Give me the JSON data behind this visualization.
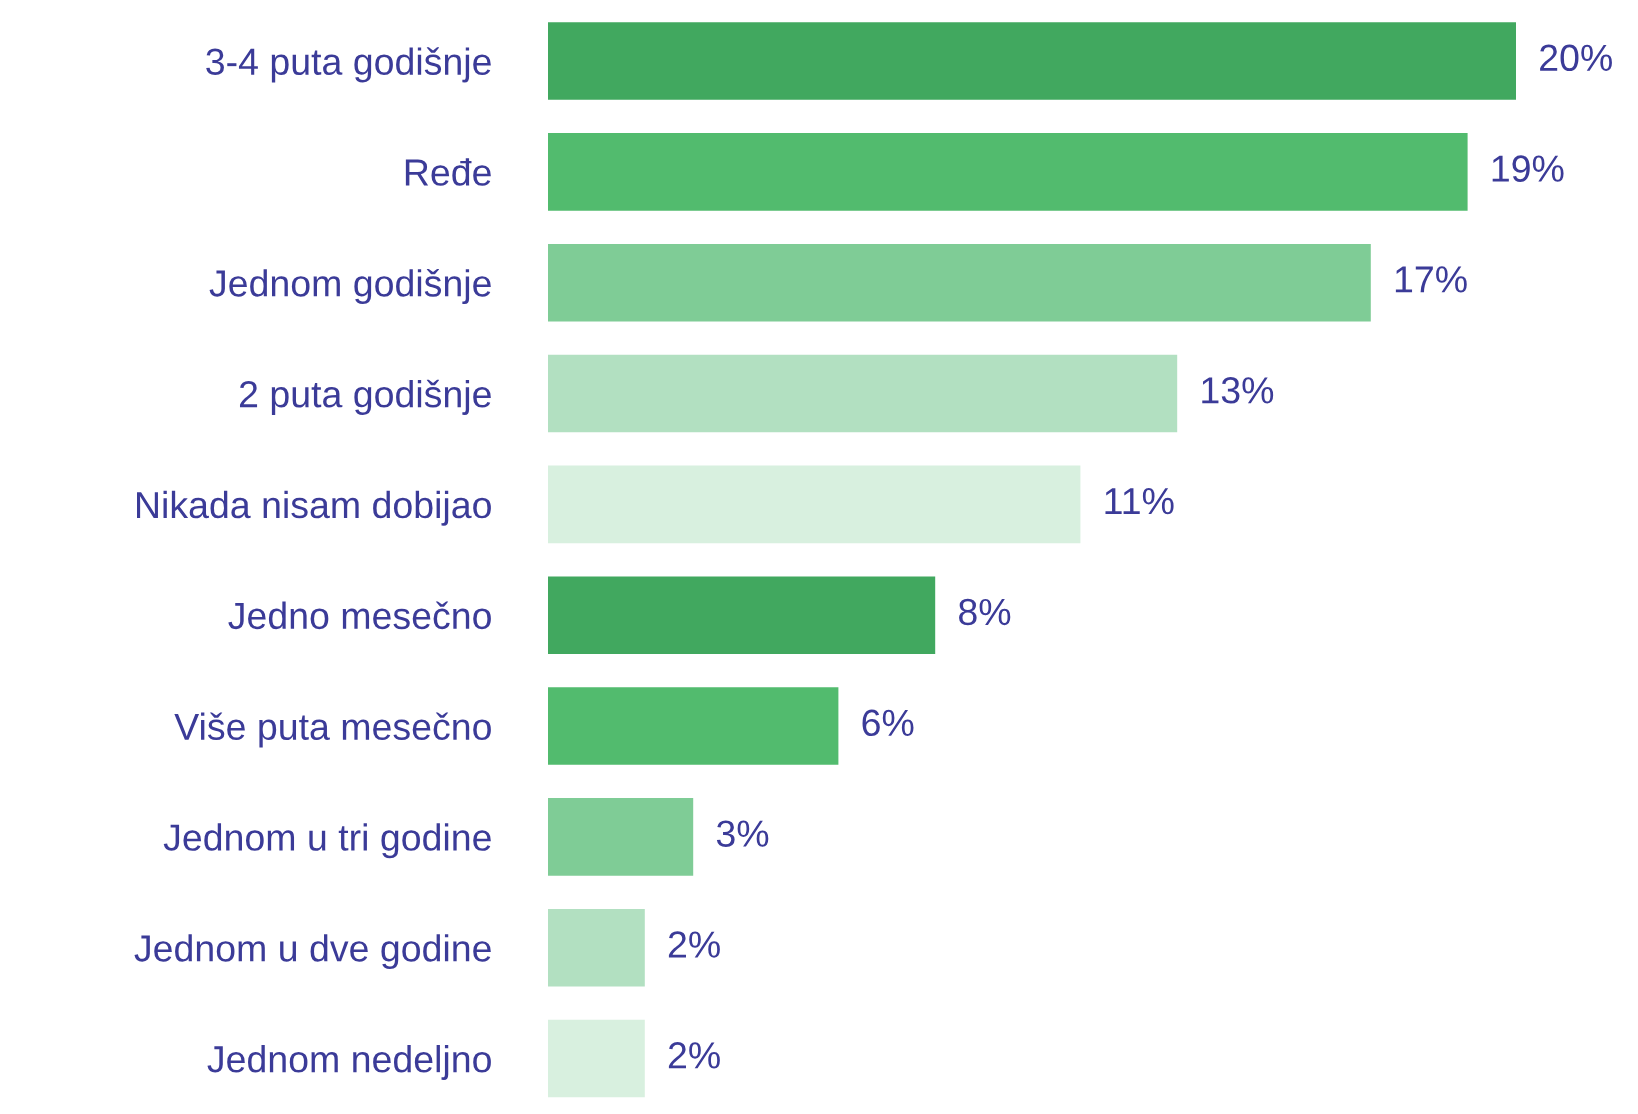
{
  "chart_data": {
    "type": "bar",
    "orientation": "horizontal",
    "categories": [
      "3-4 puta godišnje",
      "Ređe",
      "Jednom godišnje",
      "2 puta godišnje",
      "Nikada nisam dobijao",
      "Jedno mesečno",
      "Više puta mesečno",
      "Jednom u tri godine",
      "Jednom u dve godine",
      "Jednom nedeljno"
    ],
    "values": [
      20,
      19,
      17,
      13,
      11,
      8,
      6,
      3,
      2,
      2
    ],
    "colors": [
      "#41a85f",
      "#52bb6e",
      "#7fcc96",
      "#b2e0c1",
      "#d8f0df",
      "#41a85f",
      "#52bb6e",
      "#7fcc96",
      "#b2e0c1",
      "#d8f0df"
    ],
    "value_labels": [
      "20%",
      "19%",
      "17%",
      "13%",
      "11%",
      "8%",
      "6%",
      "3%",
      "2%",
      "2%"
    ],
    "grid": false,
    "legend": false
  }
}
